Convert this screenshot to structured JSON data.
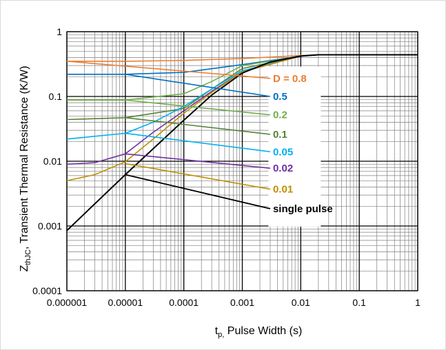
{
  "chart_data": {
    "type": "line",
    "x_scale": "log",
    "y_scale": "log",
    "xlim": [
      1e-06,
      1
    ],
    "ylim": [
      0.0001,
      1
    ],
    "x_tick_labels": [
      "0.000001",
      "0.00001",
      "0.0001",
      "0.001",
      "0.01",
      "0.1",
      "1"
    ],
    "y_tick_labels": [
      "0.0001",
      "0.001",
      "0.01",
      "0.1",
      "1"
    ],
    "xlabel": {
      "main": "t",
      "sub": "p,",
      "rest": " Pulse Width (s)"
    },
    "ylabel": {
      "main": "Z",
      "sub": "thJC",
      "rest": ",  Transient Thermal Resistance (K/W)"
    },
    "grid": true,
    "series": [
      {
        "name": "D = 0.8",
        "color": "#ED7D31",
        "points": [
          [
            1e-06,
            0.35
          ],
          [
            1e-05,
            0.35
          ],
          [
            0.0001,
            0.36
          ],
          [
            0.001,
            0.385
          ],
          [
            0.01,
            0.43
          ],
          [
            0.02,
            0.44
          ],
          [
            1,
            0.44
          ]
        ]
      },
      {
        "name": "0.5",
        "color": "#0070C0",
        "points": [
          [
            1e-06,
            0.22
          ],
          [
            1e-05,
            0.22
          ],
          [
            0.0001,
            0.235
          ],
          [
            0.001,
            0.31
          ],
          [
            0.01,
            0.42
          ],
          [
            0.02,
            0.44
          ]
        ]
      },
      {
        "name": "0.2",
        "color": "#70AD47",
        "points": [
          [
            1e-06,
            0.088
          ],
          [
            1e-05,
            0.088
          ],
          [
            0.0001,
            0.11
          ],
          [
            0.0003,
            0.17
          ],
          [
            0.001,
            0.3
          ],
          [
            0.01,
            0.42
          ],
          [
            0.02,
            0.44
          ]
        ]
      },
      {
        "name": "0.1",
        "color": "#548235",
        "points": [
          [
            1e-06,
            0.044
          ],
          [
            1e-05,
            0.047
          ],
          [
            0.0001,
            0.065
          ],
          [
            0.0003,
            0.13
          ],
          [
            0.001,
            0.27
          ],
          [
            0.01,
            0.42
          ],
          [
            0.02,
            0.44
          ]
        ]
      },
      {
        "name": "0.05",
        "color": "#00B0F0",
        "points": [
          [
            1e-06,
            0.022
          ],
          [
            1e-05,
            0.027
          ],
          [
            3e-05,
            0.04
          ],
          [
            0.0001,
            0.07
          ],
          [
            0.0003,
            0.13
          ],
          [
            0.001,
            0.25
          ],
          [
            0.01,
            0.42
          ],
          [
            0.02,
            0.44
          ]
        ]
      },
      {
        "name": "0.02",
        "color": "#7030A0",
        "points": [
          [
            1e-06,
            0.009
          ],
          [
            3e-06,
            0.0095
          ],
          [
            1e-05,
            0.013
          ],
          [
            3e-05,
            0.028
          ],
          [
            0.0001,
            0.06
          ],
          [
            0.0003,
            0.12
          ],
          [
            0.001,
            0.24
          ],
          [
            0.01,
            0.42
          ],
          [
            0.02,
            0.44
          ]
        ]
      },
      {
        "name": "0.01",
        "color": "#BF9000",
        "points": [
          [
            1e-06,
            0.005
          ],
          [
            3e-06,
            0.0062
          ],
          [
            1e-05,
            0.0098
          ],
          [
            3e-05,
            0.022
          ],
          [
            0.0001,
            0.055
          ],
          [
            0.0003,
            0.115
          ],
          [
            0.001,
            0.24
          ],
          [
            0.01,
            0.42
          ],
          [
            0.02,
            0.44
          ]
        ]
      },
      {
        "name": "single pulse",
        "color": "#000000",
        "points": [
          [
            1e-06,
            0.00085
          ],
          [
            1e-05,
            0.0062
          ],
          [
            0.0001,
            0.043
          ],
          [
            0.0003,
            0.105
          ],
          [
            0.001,
            0.23
          ],
          [
            0.003,
            0.34
          ],
          [
            0.01,
            0.42
          ],
          [
            0.02,
            0.44
          ],
          [
            1,
            0.44
          ]
        ]
      }
    ],
    "label_lines": [
      {
        "name": "D = 0.8",
        "color": "#ED7D31",
        "from": [
          1e-06,
          0.35
        ],
        "to": [
          0.003,
          0.19
        ]
      },
      {
        "name": "0.5",
        "color": "#0070C0",
        "from": [
          1e-05,
          0.22
        ],
        "to": [
          0.003,
          0.1
        ]
      },
      {
        "name": "0.2",
        "color": "#70AD47",
        "from": [
          1e-05,
          0.088
        ],
        "to": [
          0.003,
          0.052
        ]
      },
      {
        "name": "0.1",
        "color": "#548235",
        "from": [
          1e-05,
          0.047
        ],
        "to": [
          0.003,
          0.026
        ]
      },
      {
        "name": "0.05",
        "color": "#00B0F0",
        "from": [
          1e-05,
          0.027
        ],
        "to": [
          0.003,
          0.014
        ]
      },
      {
        "name": "0.02",
        "color": "#7030A0",
        "from": [
          1e-05,
          0.013
        ],
        "to": [
          0.003,
          0.0078
        ]
      },
      {
        "name": "0.01",
        "color": "#BF9000",
        "from": [
          1e-05,
          0.0092
        ],
        "to": [
          0.003,
          0.0037
        ]
      },
      {
        "name": "single pulse",
        "color": "#000000",
        "from": [
          1e-05,
          0.0062
        ],
        "to": [
          0.003,
          0.00185
        ]
      }
    ]
  }
}
